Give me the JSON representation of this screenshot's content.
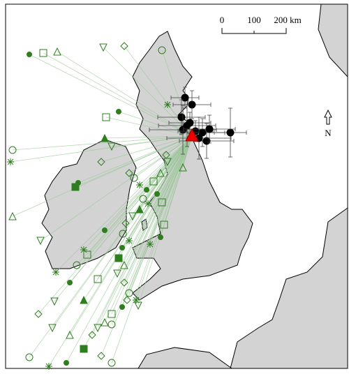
{
  "scale_bar": {
    "labels": [
      "0",
      "100",
      "200 km"
    ]
  },
  "north_arrow": {
    "label": "N"
  }
}
